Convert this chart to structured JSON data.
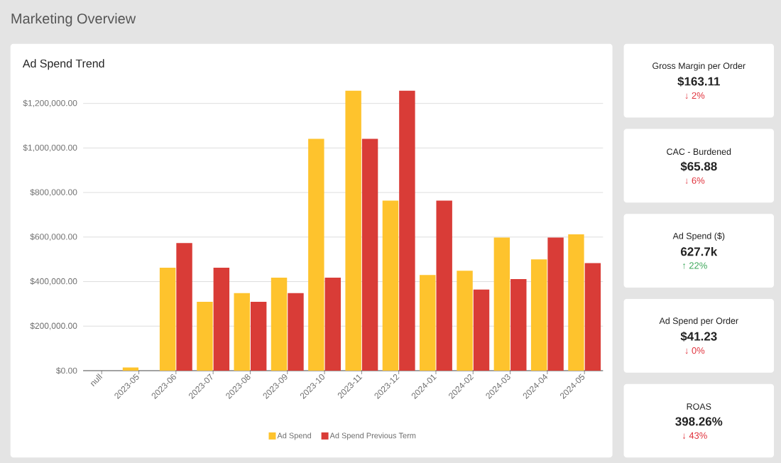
{
  "chart_data": [
    {
      "type": "other",
      "title": "Marketing Overview"
    },
    {
      "type": "bar",
      "title": "Ad Spend Trend",
      "categories": [
        "null",
        "2023-05",
        "2023-06",
        "2023-07",
        "2023-08",
        "2023-09",
        "2023-10",
        "2023-11",
        "2023-12",
        "2024-01",
        "2024-02",
        "2024-03",
        "2024-04",
        "2024-05"
      ],
      "series": [
        {
          "name": "Ad Spend",
          "color": "#FEC32D",
          "values": [
            null,
            14000,
            462000,
            309000,
            348000,
            418000,
            1041000,
            1258000,
            764000,
            430000,
            449000,
            598000,
            500000,
            612000
          ]
        },
        {
          "name": "Ad Spend Previous Term",
          "color": "#D93C37",
          "values": [
            null,
            null,
            573000,
            462000,
            309000,
            348000,
            418000,
            1041000,
            1258000,
            764000,
            364000,
            411000,
            598000,
            483000
          ]
        }
      ],
      "ylim": [
        0,
        1258000
      ],
      "yticks": [
        {
          "value": 0,
          "label": "$0.00"
        },
        {
          "value": 200000,
          "label": "$200,000.00"
        },
        {
          "value": 400000,
          "label": "$400,000.00"
        },
        {
          "value": 600000,
          "label": "$600,000.00"
        },
        {
          "value": 800000,
          "label": "$800,000.00"
        },
        {
          "value": 1000000,
          "label": "$1,000,000.00"
        },
        {
          "value": 1200000,
          "label": "$1,200,000.00"
        }
      ],
      "grid": "y",
      "legend": "bottom"
    },
    {
      "type": "other",
      "title": "Gross Margin per Order",
      "annotations": [
        "$163.11",
        "↓ 2%"
      ],
      "color": "#E0313B"
    },
    {
      "type": "other",
      "title": "CAC - Burdened",
      "annotations": [
        "$65.88",
        "↓ 6%"
      ],
      "color": "#E0313B"
    },
    {
      "type": "other",
      "title": "Ad Spend ($)",
      "annotations": [
        "627.7k",
        "↑ 22%"
      ],
      "color": "#3DA85B"
    },
    {
      "type": "other",
      "title": "Ad Spend per Order",
      "annotations": [
        "$41.23",
        "↓ 0%"
      ],
      "color": "#E0313B"
    },
    {
      "type": "other",
      "title": "ROAS",
      "annotations": [
        "398.26%",
        "↓ 43%"
      ],
      "color": "#E0313B"
    }
  ]
}
